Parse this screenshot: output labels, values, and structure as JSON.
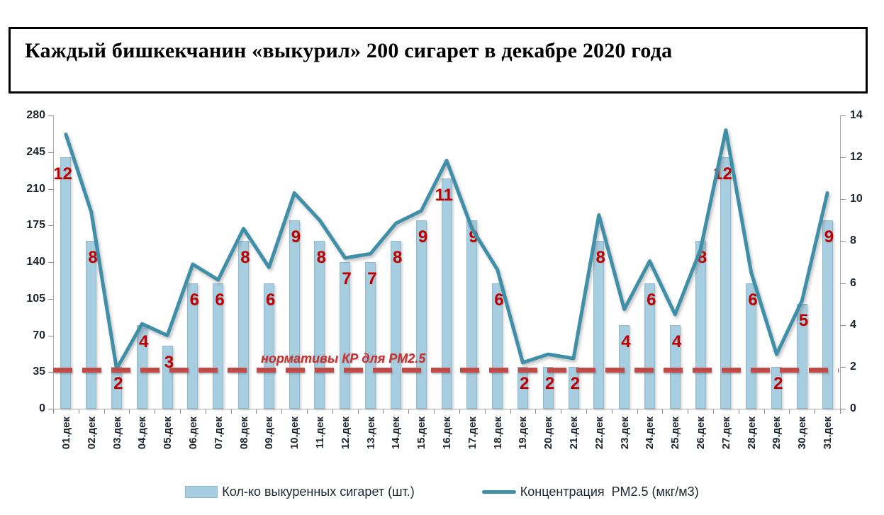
{
  "title": "Каждый бишкекчанин «выкурил» 200 сигарет в декабре 2020 года",
  "chart_data": {
    "type": "bar+line",
    "categories": [
      "01.дек",
      "02.дек",
      "03.дек",
      "04.дек",
      "05.дек",
      "06.дек",
      "07.дек",
      "08.дек",
      "09.дек",
      "10.дек",
      "11.дек",
      "12.дек",
      "13.дек",
      "14.дек",
      "15.дек",
      "16.дек",
      "17.дек",
      "18.дек",
      "19.дек",
      "20.дек",
      "21.дек",
      "22.дек",
      "23.дек",
      "24.дек",
      "25.дек",
      "26.дек",
      "27.дек",
      "28.дек",
      "29.дек",
      "30.дек",
      "31.дек"
    ],
    "series": [
      {
        "name": "Кол-ко выкуренных сигарет (шт.)",
        "type": "bar",
        "axis": "right",
        "color": "#a6cde0",
        "values": [
          12,
          8,
          2,
          4,
          3,
          6,
          6,
          8,
          6,
          9,
          8,
          7,
          7,
          8,
          9,
          11,
          9,
          6,
          2,
          2,
          2,
          8,
          4,
          6,
          4,
          8,
          12,
          6,
          2,
          5,
          9
        ],
        "data_labels_shown": true,
        "data_label_color": "#c00000"
      },
      {
        "name": "Концентрация  РМ2.5 (мкг/м3)",
        "type": "line",
        "axis": "left",
        "color": "#3f8fa9",
        "values": [
          262,
          188,
          38,
          81,
          70,
          138,
          123,
          172,
          135,
          206,
          180,
          144,
          148,
          177,
          189,
          237,
          172,
          133,
          44,
          52,
          48,
          185,
          95,
          141,
          90,
          152,
          266,
          130,
          52,
          103,
          206
        ]
      },
      {
        "name": "нормативы КР для РМ2.5",
        "type": "constant-dashed-line",
        "axis": "left",
        "value": 37,
        "color": "#bf4a47"
      }
    ],
    "left_axis": {
      "min": 0,
      "max": 280,
      "ticks": [
        0,
        35,
        70,
        105,
        140,
        175,
        210,
        245,
        280
      ]
    },
    "right_axis": {
      "min": 0,
      "max": 14,
      "ticks": [
        0,
        2,
        4,
        6,
        8,
        10,
        12,
        14
      ]
    },
    "grid": false,
    "legend_position": "bottom"
  }
}
